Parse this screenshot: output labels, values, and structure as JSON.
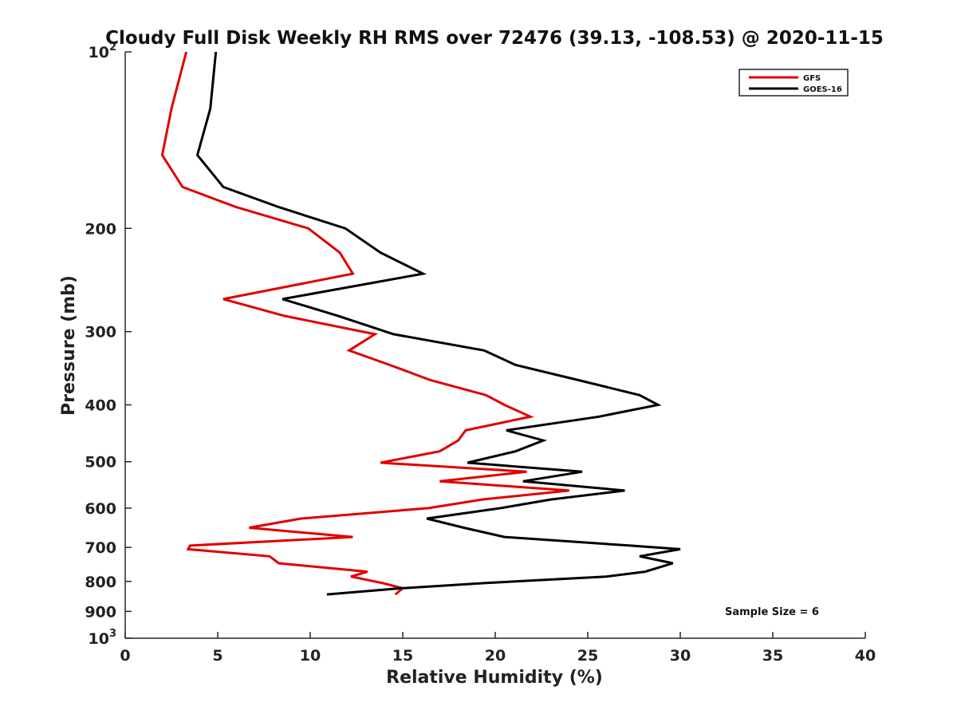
{
  "chart_data": {
    "type": "line",
    "title": "Cloudy Full Disk Weekly RH RMS over 72476 (39.13, -108.53) @ 2020-11-15",
    "xlabel": "Relative Humidity (%)",
    "ylabel": "Pressure (mb)",
    "xlim": [
      0,
      40
    ],
    "ylim": [
      1000,
      100
    ],
    "yscale": "log",
    "x_ticks": [
      "0",
      "5",
      "10",
      "15",
      "20",
      "25",
      "30",
      "35",
      "40"
    ],
    "y_ticks": [
      {
        "value": 100,
        "label": "10",
        "sup": "2"
      },
      {
        "value": 200,
        "label": "200",
        "sup": ""
      },
      {
        "value": 300,
        "label": "300",
        "sup": ""
      },
      {
        "value": 400,
        "label": "400",
        "sup": ""
      },
      {
        "value": 500,
        "label": "500",
        "sup": ""
      },
      {
        "value": 600,
        "label": "600",
        "sup": ""
      },
      {
        "value": 700,
        "label": "700",
        "sup": ""
      },
      {
        "value": 800,
        "label": "800",
        "sup": ""
      },
      {
        "value": 900,
        "label": "900",
        "sup": ""
      },
      {
        "value": 1000,
        "label": "10",
        "sup": "3"
      }
    ],
    "grid": false,
    "legend_position": "top-right",
    "series": [
      {
        "name": "GFS",
        "color": "#e00000",
        "points": [
          [
            3.3,
            100
          ],
          [
            2.5,
            125
          ],
          [
            2.0,
            150
          ],
          [
            3.1,
            170
          ],
          [
            6.0,
            184
          ],
          [
            9.9,
            200
          ],
          [
            11.6,
            220
          ],
          [
            12.3,
            239
          ],
          [
            5.3,
            264
          ],
          [
            8.6,
            282
          ],
          [
            13.5,
            303
          ],
          [
            12.1,
            323
          ],
          [
            14.3,
            342
          ],
          [
            16.5,
            363
          ],
          [
            19.5,
            385
          ],
          [
            20.5,
            400
          ],
          [
            21.9,
            419
          ],
          [
            18.4,
            442
          ],
          [
            18.0,
            460
          ],
          [
            17.0,
            480
          ],
          [
            13.8,
            502
          ],
          [
            21.7,
            520
          ],
          [
            17.0,
            540
          ],
          [
            24.0,
            560
          ],
          [
            19.3,
            580
          ],
          [
            16.4,
            600
          ],
          [
            9.5,
            625
          ],
          [
            6.7,
            648
          ],
          [
            12.3,
            672
          ],
          [
            3.5,
            695
          ],
          [
            3.4,
            705
          ],
          [
            7.8,
            725
          ],
          [
            8.3,
            745
          ],
          [
            13.1,
            770
          ],
          [
            12.2,
            785
          ],
          [
            13.9,
            805
          ],
          [
            15.0,
            822
          ],
          [
            14.6,
            842
          ]
        ]
      },
      {
        "name": "GOES-16",
        "color": "#000000",
        "points": [
          [
            4.9,
            100
          ],
          [
            4.6,
            125
          ],
          [
            3.9,
            150
          ],
          [
            5.3,
            170
          ],
          [
            8.3,
            184
          ],
          [
            11.9,
            200
          ],
          [
            13.8,
            220
          ],
          [
            16.1,
            239
          ],
          [
            8.5,
            264
          ],
          [
            11.5,
            282
          ],
          [
            14.5,
            303
          ],
          [
            19.4,
            323
          ],
          [
            21.1,
            342
          ],
          [
            24.5,
            363
          ],
          [
            27.8,
            385
          ],
          [
            28.8,
            400
          ],
          [
            25.6,
            419
          ],
          [
            20.6,
            442
          ],
          [
            22.6,
            460
          ],
          [
            21.1,
            480
          ],
          [
            18.5,
            502
          ],
          [
            24.7,
            520
          ],
          [
            21.5,
            540
          ],
          [
            27.0,
            560
          ],
          [
            23.0,
            580
          ],
          [
            20.3,
            600
          ],
          [
            16.3,
            625
          ],
          [
            18.3,
            648
          ],
          [
            20.5,
            672
          ],
          [
            27.3,
            695
          ],
          [
            30.0,
            705
          ],
          [
            27.8,
            725
          ],
          [
            29.6,
            745
          ],
          [
            28.1,
            770
          ],
          [
            26.0,
            785
          ],
          [
            19.5,
            805
          ],
          [
            14.9,
            822
          ],
          [
            10.9,
            842
          ]
        ]
      }
    ],
    "annotations": [
      "Sample Size = 6"
    ]
  }
}
